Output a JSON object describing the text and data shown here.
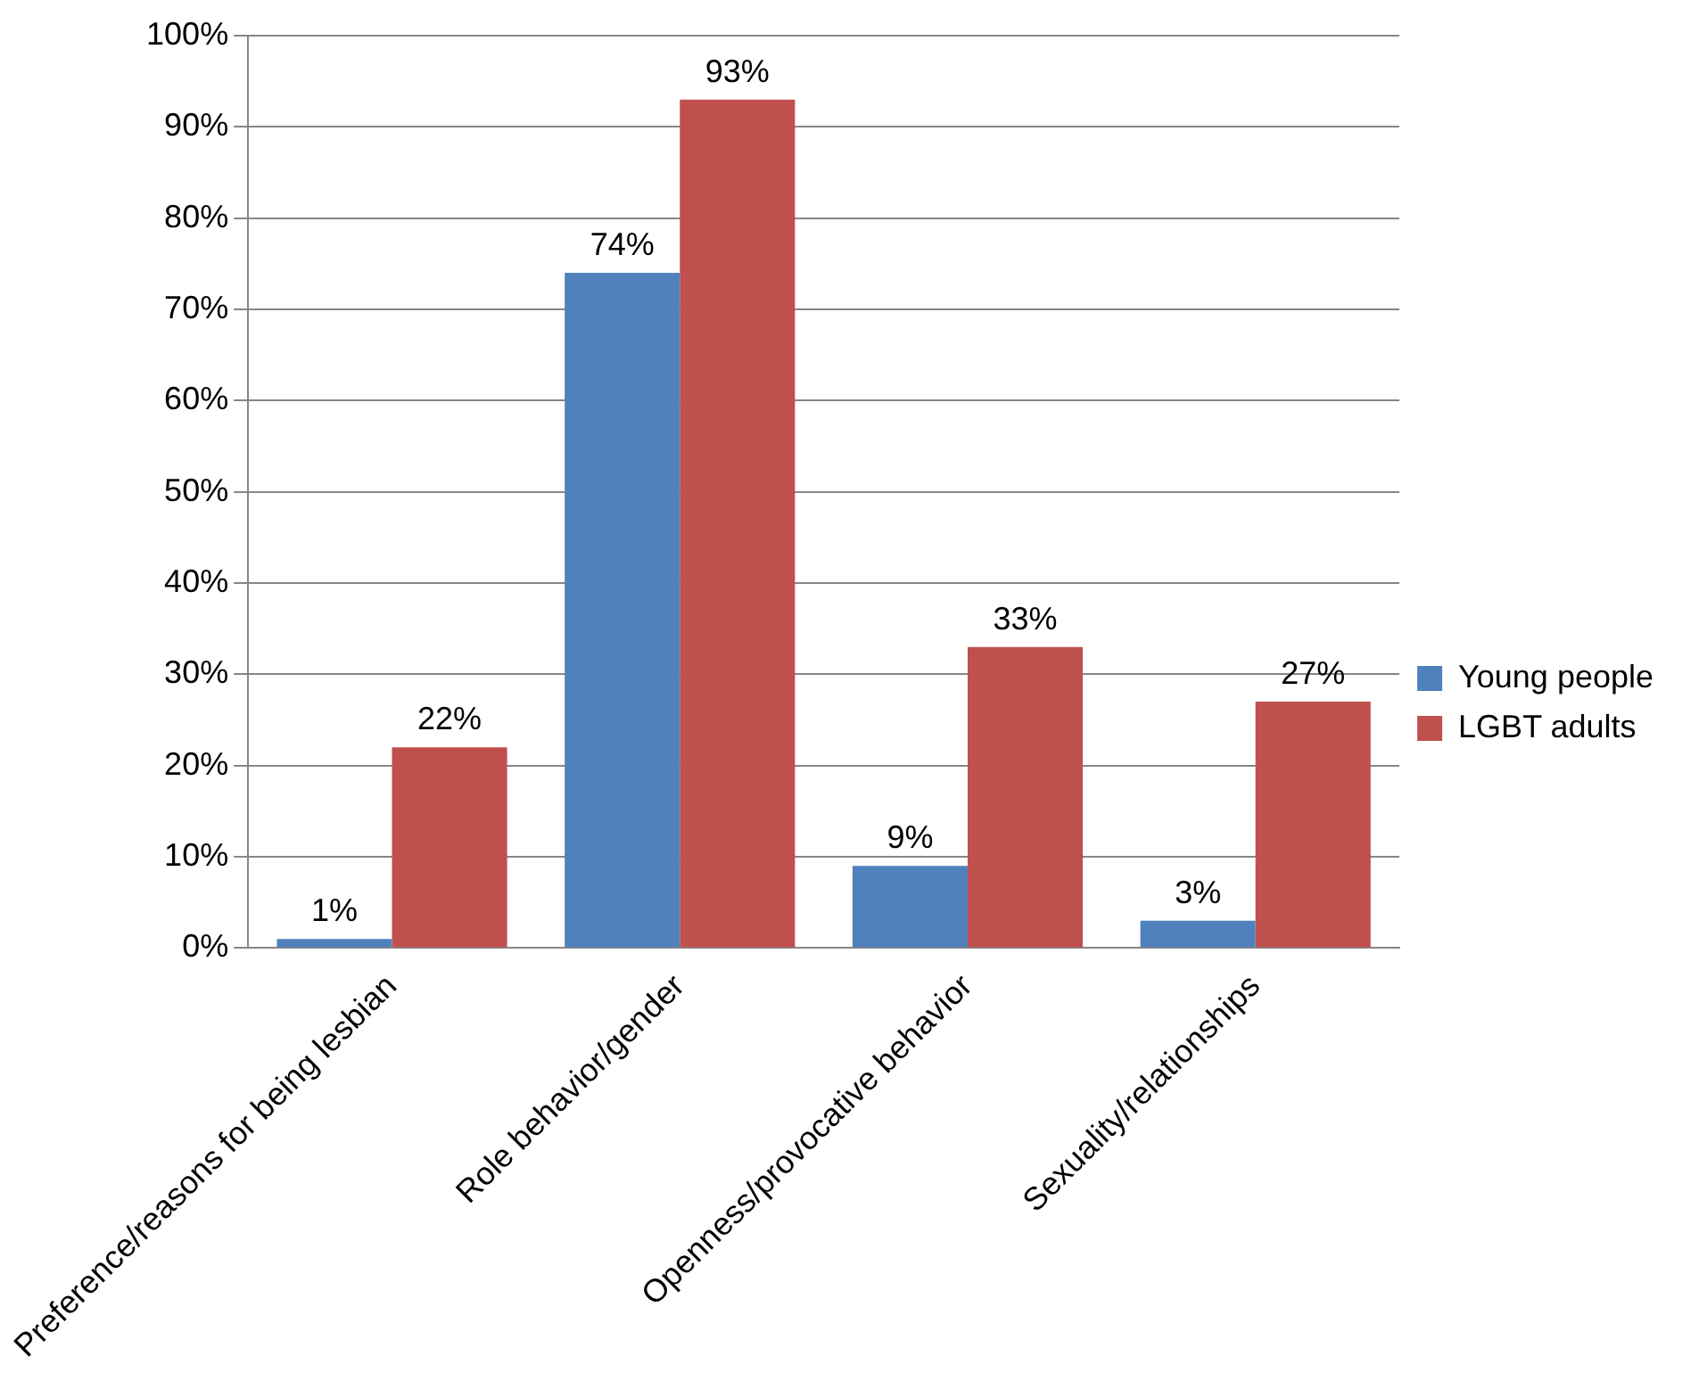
{
  "chart_data": {
    "type": "bar",
    "categories": [
      "Preference/reasons for being lesbian",
      "Role behavior/gender",
      "Openness/provocative behavior",
      "Sexuality/relationships"
    ],
    "series": [
      {
        "name": "Young people",
        "color": "#4f81bd",
        "values": [
          1,
          74,
          9,
          3
        ],
        "value_labels": [
          "1%",
          "74%",
          "9%",
          "3%"
        ]
      },
      {
        "name": "LGBT adults",
        "color": "#c0504d",
        "values": [
          22,
          93,
          33,
          27
        ],
        "value_labels": [
          "22%",
          "93%",
          "33%",
          "27%"
        ]
      }
    ],
    "ylim": [
      0,
      100
    ],
    "yticks": [
      {
        "value": 0,
        "label": "0%"
      },
      {
        "value": 10,
        "label": "10%"
      },
      {
        "value": 20,
        "label": "20%"
      },
      {
        "value": 30,
        "label": "30%"
      },
      {
        "value": 40,
        "label": "40%"
      },
      {
        "value": 50,
        "label": "50%"
      },
      {
        "value": 60,
        "label": "60%"
      },
      {
        "value": 70,
        "label": "70%"
      },
      {
        "value": 80,
        "label": "80%"
      },
      {
        "value": 90,
        "label": "90%"
      },
      {
        "value": 100,
        "label": "100%"
      }
    ],
    "grid": "y",
    "legend": "right"
  }
}
